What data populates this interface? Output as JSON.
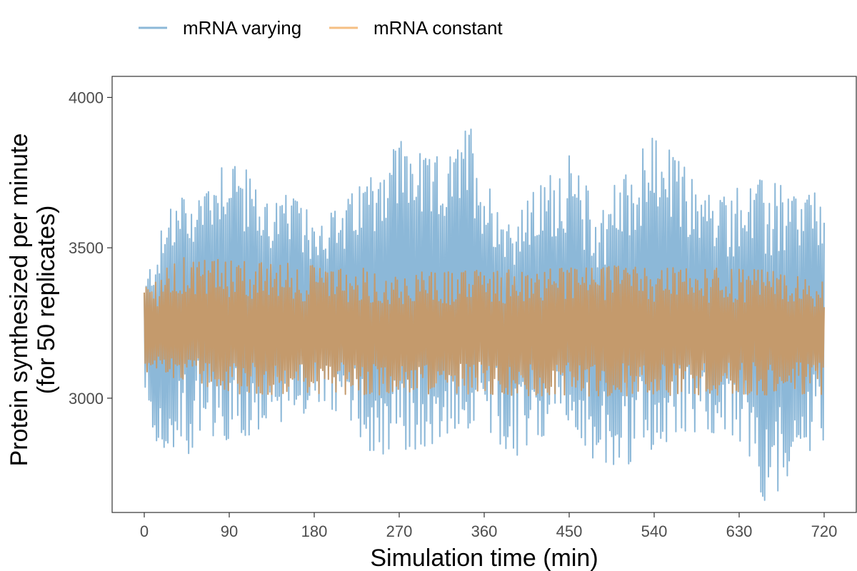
{
  "chart_data": {
    "type": "line",
    "xlabel": "Simulation time (min)",
    "ylabel_lines": [
      "Protein synthesized per minute",
      "(for 50 replicates)"
    ],
    "xlim": [
      0,
      720
    ],
    "ylim": [
      2620,
      4070
    ],
    "x_ticks": [
      0,
      90,
      180,
      270,
      360,
      450,
      540,
      630,
      720
    ],
    "y_ticks": [
      3000,
      3500,
      4000
    ],
    "x_tick_labels": [
      "0",
      "90",
      "180",
      "270",
      "360",
      "450",
      "540",
      "630",
      "720"
    ],
    "y_tick_labels": [
      "3000",
      "3500",
      "4000"
    ],
    "grid": false,
    "legend_position": "top-left",
    "series": [
      {
        "name": "mRNA varying",
        "color": "#8cb8d8",
        "x_start": 0,
        "x_end": 720,
        "n_points": 720,
        "mean": [
          [
            0,
            3215
          ],
          [
            30,
            3300
          ],
          [
            60,
            3350
          ],
          [
            90,
            3380
          ],
          [
            120,
            3330
          ],
          [
            150,
            3300
          ],
          [
            180,
            3320
          ],
          [
            210,
            3320
          ],
          [
            240,
            3350
          ],
          [
            270,
            3380
          ],
          [
            300,
            3380
          ],
          [
            330,
            3410
          ],
          [
            360,
            3340
          ],
          [
            390,
            3300
          ],
          [
            420,
            3340
          ],
          [
            450,
            3320
          ],
          [
            480,
            3240
          ],
          [
            510,
            3280
          ],
          [
            540,
            3340
          ],
          [
            570,
            3320
          ],
          [
            600,
            3290
          ],
          [
            630,
            3260
          ],
          [
            660,
            3200
          ],
          [
            690,
            3290
          ],
          [
            720,
            3330
          ]
        ],
        "envelope_high": [
          [
            0,
            3380
          ],
          [
            10,
            3500
          ],
          [
            30,
            3650
          ],
          [
            60,
            3720
          ],
          [
            90,
            3860
          ],
          [
            120,
            3700
          ],
          [
            150,
            3680
          ],
          [
            180,
            3620
          ],
          [
            210,
            3640
          ],
          [
            240,
            3780
          ],
          [
            270,
            3890
          ],
          [
            300,
            3800
          ],
          [
            330,
            3820
          ],
          [
            345,
            3945
          ],
          [
            360,
            3750
          ],
          [
            390,
            3600
          ],
          [
            420,
            3720
          ],
          [
            450,
            3830
          ],
          [
            480,
            3640
          ],
          [
            510,
            3760
          ],
          [
            540,
            3900
          ],
          [
            570,
            3780
          ],
          [
            600,
            3680
          ],
          [
            630,
            3700
          ],
          [
            660,
            3740
          ],
          [
            690,
            3700
          ],
          [
            720,
            3690
          ]
        ],
        "envelope_low": [
          [
            0,
            3050
          ],
          [
            10,
            2860
          ],
          [
            30,
            2730
          ],
          [
            60,
            2880
          ],
          [
            90,
            2850
          ],
          [
            120,
            2880
          ],
          [
            150,
            2930
          ],
          [
            180,
            2960
          ],
          [
            210,
            2950
          ],
          [
            240,
            2810
          ],
          [
            270,
            2800
          ],
          [
            300,
            2820
          ],
          [
            330,
            2880
          ],
          [
            360,
            2910
          ],
          [
            390,
            2750
          ],
          [
            420,
            2850
          ],
          [
            450,
            2930
          ],
          [
            480,
            2770
          ],
          [
            510,
            2750
          ],
          [
            540,
            2820
          ],
          [
            570,
            2880
          ],
          [
            600,
            2870
          ],
          [
            630,
            2850
          ],
          [
            660,
            2630
          ],
          [
            690,
            2790
          ],
          [
            720,
            2860
          ]
        ]
      },
      {
        "name": "mRNA constant",
        "color": "#c49a6c",
        "legend_color": "#f5bf83",
        "x_start": 0,
        "x_end": 720,
        "n_points": 720,
        "mean": [
          [
            0,
            3215
          ],
          [
            720,
            3215
          ]
        ],
        "envelope_high": [
          [
            0,
            3380
          ],
          [
            40,
            3470
          ],
          [
            300,
            3420
          ],
          [
            500,
            3440
          ],
          [
            650,
            3430
          ],
          [
            720,
            3390
          ]
        ],
        "envelope_low": [
          [
            0,
            3090
          ],
          [
            100,
            3010
          ],
          [
            300,
            3010
          ],
          [
            500,
            3005
          ],
          [
            720,
            3010
          ]
        ]
      }
    ]
  }
}
